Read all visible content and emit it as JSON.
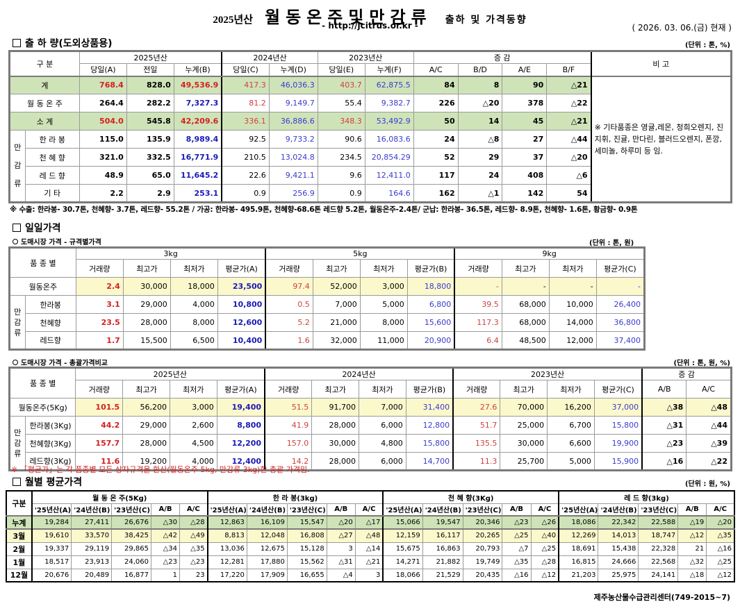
{
  "header": {
    "year_label": "2025년산",
    "title_main": "월동온주및만감류",
    "title_sub": "출하 및 가격동향",
    "url": "- http://jcitrus.or.kr -",
    "as_of": "( 2026. 03. 06.(금) 현재 )"
  },
  "shipment": {
    "section_title": "출 하 량(도외상품용)",
    "unit": "(단위 : 톤, %)",
    "col_group_label": "구    분",
    "year_groups": [
      "2025년산",
      "2024년산",
      "2023년산",
      "증    감"
    ],
    "remarks_header": "비 고",
    "subheaders": [
      "당일(A)",
      "전일",
      "누계(B)",
      "당일(C)",
      "누계(D)",
      "당일(E)",
      "누계(F)",
      "A/C",
      "B/D",
      "A/E",
      "B/F"
    ],
    "mandarin_group_label": [
      "만",
      "감",
      "류"
    ],
    "rows": [
      {
        "label": "계",
        "values": [
          "768.4",
          "828.0",
          "49,536.9",
          "417.3",
          "46,036.3",
          "403.7",
          "62,875.5",
          "84",
          "8",
          "90",
          "△21"
        ]
      },
      {
        "label": "월 동 온 주",
        "values": [
          "264.4",
          "282.2",
          "7,327.3",
          "81.2",
          "9,149.7",
          "55.4",
          "9,382.7",
          "226",
          "△20",
          "378",
          "△22"
        ]
      },
      {
        "label": "소    계",
        "values": [
          "504.0",
          "545.8",
          "42,209.6",
          "336.1",
          "36,886.6",
          "348.3",
          "53,492.9",
          "50",
          "14",
          "45",
          "△21"
        ]
      },
      {
        "label": "한 라 봉",
        "values": [
          "115.0",
          "135.9",
          "8,989.4",
          "92.5",
          "9,733.2",
          "90.6",
          "16,083.6",
          "24",
          "△8",
          "27",
          "△44"
        ]
      },
      {
        "label": "천 혜 향",
        "values": [
          "321.0",
          "332.5",
          "16,771.9",
          "210.5",
          "13,024.8",
          "234.5",
          "20,854.29",
          "52",
          "29",
          "37",
          "△20"
        ]
      },
      {
        "label": "레 드 향",
        "values": [
          "48.9",
          "65.0",
          "11,645.2",
          "22.6",
          "9,421.1",
          "9.6",
          "12,411.0",
          "117",
          "24",
          "408",
          "△6"
        ]
      },
      {
        "label": "기      타",
        "values": [
          "2.2",
          "2.9",
          "253.1",
          "0.9",
          "256.9",
          "0.9",
          "164.6",
          "162",
          "△1",
          "142",
          "54"
        ]
      }
    ],
    "remarks": "※ 기타품종은 영귤,레몬, 청희오렌지, 진지휘, 진귤, 만다린, 블러드오렌지, 폰깡,세미놀, 하루미 등 임.",
    "footnote": "※ 수출: 한라봉- 30.7톤, 천혜향- 3.7톤, 레드향- 55.2톤 / 가공: 한라봉- 495.9톤, 천혜향-68.6톤 레드향 5.2톤, 월동온주-2.4톤/  군납: 한라봉- 36.5톤, 레드향- 8.9톤, 천혜향- 1.6톤, 황금향- 0.9톤"
  },
  "daily": {
    "section_title": "일일가격",
    "spec": {
      "subtitle": "도매시장 가격 - 규격별가격",
      "unit": "(단위 : 톤, 원)",
      "col_group_label": "품 종 별",
      "groups": [
        "3kg",
        "5kg",
        "9kg"
      ],
      "subheaders": [
        "거래량",
        "최고가",
        "최저가",
        "평균가(A)",
        "거래량",
        "최고가",
        "최저가",
        "평균가(B)",
        "거래량",
        "최고가",
        "최저가",
        "평균가(C)"
      ],
      "mandarin_group_label": [
        "만",
        "감",
        "류"
      ],
      "rows": [
        {
          "label": "월동온주",
          "values": [
            "2.4",
            "30,000",
            "18,000",
            "23,500",
            "97.4",
            "52,000",
            "3,000",
            "18,800",
            "-",
            "-",
            "-",
            "-"
          ]
        },
        {
          "label": "한라봉",
          "values": [
            "3.1",
            "29,000",
            "4,000",
            "10,800",
            "0.5",
            "7,000",
            "5,000",
            "6,800",
            "39.5",
            "68,000",
            "10,000",
            "26,400"
          ]
        },
        {
          "label": "천혜향",
          "values": [
            "23.5",
            "28,000",
            "8,000",
            "12,600",
            "5.2",
            "21,000",
            "8,000",
            "15,600",
            "117.3",
            "68,000",
            "14,000",
            "36,800"
          ]
        },
        {
          "label": "레드향",
          "values": [
            "1.7",
            "15,500",
            "6,500",
            "10,400",
            "1.6",
            "32,000",
            "11,000",
            "20,900",
            "6.4",
            "48,500",
            "12,000",
            "37,400"
          ]
        }
      ]
    },
    "overall": {
      "subtitle": "도매시장 가격 - 총괄가격비교",
      "unit": "(단위 : 톤, 원, %)",
      "col_group_label": "품 종 별",
      "groups": [
        "2025년산",
        "2024년산",
        "2023년산",
        "증    감"
      ],
      "subheaders": [
        "거래량",
        "최고가",
        "최저가",
        "평균가(A)",
        "거래량",
        "최고가",
        "최저가",
        "평균가(B)",
        "거래량",
        "최고가",
        "최저가",
        "평균가(C)",
        "A/B",
        "A/C"
      ],
      "mandarin_group_label": [
        "만",
        "감",
        "류"
      ],
      "rows": [
        {
          "label": "월동온주(5Kg)",
          "values": [
            "101.5",
            "56,200",
            "3,000",
            "19,400",
            "51.5",
            "91,700",
            "7,000",
            "31,400",
            "27.6",
            "70,000",
            "16,200",
            "37,000",
            "△38",
            "△48"
          ]
        },
        {
          "label": "한라봉(3Kg)",
          "values": [
            "44.2",
            "29,000",
            "2,600",
            "8,800",
            "41.9",
            "28,000",
            "6,000",
            "12,800",
            "51.7",
            "25,000",
            "6,700",
            "15,800",
            "△31",
            "△44"
          ]
        },
        {
          "label": "천혜향(3Kg)",
          "values": [
            "157.7",
            "28,000",
            "4,500",
            "12,200",
            "157.0",
            "30,000",
            "4,800",
            "15,800",
            "135.5",
            "30,000",
            "6,600",
            "19,900",
            "△23",
            "△39"
          ]
        },
        {
          "label": "레드향(3Kg)",
          "values": [
            "11.6",
            "19,200",
            "4,000",
            "12,400",
            "14.2",
            "28,000",
            "6,000",
            "14,700",
            "11.3",
            "25,700",
            "5,000",
            "15,900",
            "△16",
            "△22"
          ]
        }
      ],
      "note": "※  「평균가」는 각 품종별 모든 상자규격을 환산(월동온주 5kg, 만감류 3kg)한 총괄 가격임."
    }
  },
  "monthly": {
    "section_title": "월별 평균가격",
    "unit": "(단위 : 원, %)",
    "col_group_label": "구분",
    "groups": [
      "월 동 온 주(5Kg)",
      "한  라  봉(3kg)",
      "천 혜 향(3Kg)",
      "레 드 향(3kg)"
    ],
    "subheaders": [
      "'25년산(A)",
      "'24년산(B)",
      "'23년산(C)",
      "A/B",
      "A/C"
    ],
    "rows": [
      {
        "label": "누계",
        "values": [
          "19,284",
          "27,411",
          "26,676",
          "△30",
          "△28",
          "12,863",
          "16,109",
          "15,547",
          "△20",
          "△17",
          "15,066",
          "19,547",
          "20,346",
          "△23",
          "△26",
          "18,086",
          "22,342",
          "22,588",
          "△19",
          "△20"
        ]
      },
      {
        "label": "3월",
        "values": [
          "19,610",
          "33,570",
          "38,425",
          "△42",
          "△49",
          "8,813",
          "12,048",
          "16,808",
          "△27",
          "△48",
          "12,159",
          "16,117",
          "20,265",
          "△25",
          "△40",
          "12,269",
          "14,013",
          "18,747",
          "△12",
          "△35"
        ]
      },
      {
        "label": "2월",
        "values": [
          "19,337",
          "29,119",
          "29,865",
          "△34",
          "△35",
          "13,036",
          "12,675",
          "15,128",
          "3",
          "△14",
          "15,675",
          "16,863",
          "20,793",
          "△7",
          "△25",
          "18,691",
          "15,438",
          "22,328",
          "21",
          "△16"
        ]
      },
      {
        "label": "1월",
        "values": [
          "18,517",
          "23,913",
          "24,060",
          "△23",
          "△23",
          "12,281",
          "17,880",
          "15,562",
          "△31",
          "△21",
          "14,271",
          "21,882",
          "19,749",
          "△35",
          "△28",
          "16,815",
          "24,666",
          "22,568",
          "△32",
          "△25"
        ]
      },
      {
        "label": "12월",
        "values": [
          "20,676",
          "20,489",
          "16,877",
          "1",
          "23",
          "17,220",
          "17,909",
          "16,655",
          "△4",
          "3",
          "18,066",
          "21,529",
          "20,435",
          "△16",
          "△12",
          "21,203",
          "25,975",
          "24,141",
          "△18",
          "△12"
        ]
      }
    ]
  },
  "footer": {
    "credit": "제주농산물수급관리센터(749-2015~7)"
  },
  "colors": {
    "green_row": "#cfe3b8",
    "yellow_row": "#fbf8cc",
    "red_value": "#d42020",
    "blue_value": "#1a1ab8"
  }
}
